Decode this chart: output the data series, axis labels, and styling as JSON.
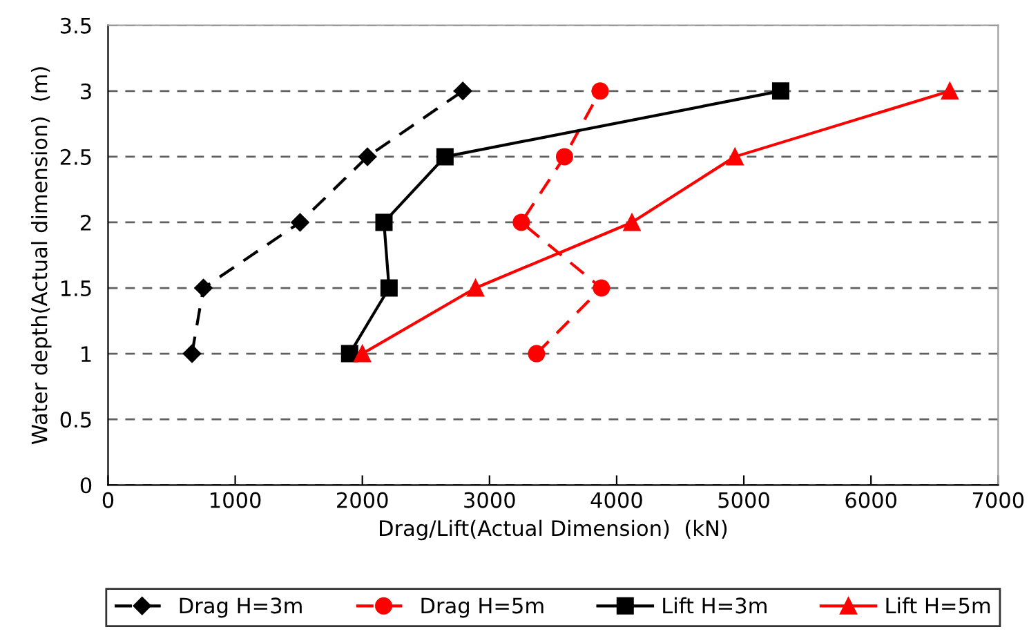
{
  "chart_data": {
    "type": "line",
    "xlabel": "Drag/Lift(Actual Dimension)  (kN)",
    "ylabel": "Water depth(Actual dimension)  (m)",
    "xlim": [
      0,
      7000
    ],
    "xticks": [
      0,
      1000,
      2000,
      3000,
      4000,
      5000,
      6000,
      7000
    ],
    "ylim": [
      0,
      3.5
    ],
    "yticks": [
      0,
      0.5,
      1,
      1.5,
      2,
      2.5,
      3,
      3.5
    ],
    "grid": "y",
    "legend": "bottom",
    "series": [
      {
        "name": "Drag H=3m",
        "color": "#000000",
        "marker": "diamond",
        "line_style": "dashed",
        "x": [
          660,
          750,
          1510,
          2040,
          2790
        ],
        "values": [
          1,
          1.5,
          2,
          2.5,
          3
        ]
      },
      {
        "name": "Drag H=5m",
        "color": "#ff0000",
        "marker": "circle",
        "line_style": "dashed",
        "x": [
          3370,
          3880,
          3250,
          3590,
          3870
        ],
        "values": [
          1,
          1.5,
          2,
          2.5,
          3
        ]
      },
      {
        "name": "Lift H=3m",
        "color": "#000000",
        "marker": "square",
        "line_style": "solid",
        "x": [
          1900,
          2210,
          2170,
          2650,
          5290
        ],
        "values": [
          1,
          1.5,
          2,
          2.5,
          3
        ]
      },
      {
        "name": "Lift H=5m",
        "color": "#ff0000",
        "marker": "triangle",
        "line_style": "solid",
        "x": [
          2000,
          2890,
          4120,
          4930,
          6620
        ],
        "values": [
          1,
          1.5,
          2,
          2.5,
          3
        ]
      }
    ]
  }
}
